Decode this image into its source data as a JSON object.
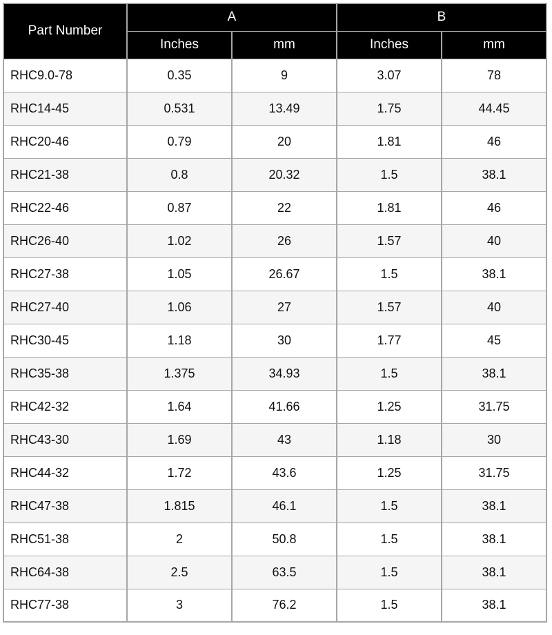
{
  "table": {
    "header": {
      "part_number": "Part Number",
      "group_a": "A",
      "group_b": "B",
      "a_inches": "Inches",
      "a_mm": "mm",
      "b_inches": "Inches",
      "b_mm": "mm"
    },
    "rows": [
      {
        "part": "RHC9.0-78",
        "a_in": "0.35",
        "a_mm": "9",
        "b_in": "3.07",
        "b_mm": "78"
      },
      {
        "part": "RHC14-45",
        "a_in": "0.531",
        "a_mm": "13.49",
        "b_in": "1.75",
        "b_mm": "44.45"
      },
      {
        "part": "RHC20-46",
        "a_in": "0.79",
        "a_mm": "20",
        "b_in": "1.81",
        "b_mm": "46"
      },
      {
        "part": "RHC21-38",
        "a_in": "0.8",
        "a_mm": "20.32",
        "b_in": "1.5",
        "b_mm": "38.1"
      },
      {
        "part": "RHC22-46",
        "a_in": "0.87",
        "a_mm": "22",
        "b_in": "1.81",
        "b_mm": "46"
      },
      {
        "part": "RHC26-40",
        "a_in": "1.02",
        "a_mm": "26",
        "b_in": "1.57",
        "b_mm": "40"
      },
      {
        "part": "RHC27-38",
        "a_in": "1.05",
        "a_mm": "26.67",
        "b_in": "1.5",
        "b_mm": "38.1"
      },
      {
        "part": "RHC27-40",
        "a_in": "1.06",
        "a_mm": "27",
        "b_in": "1.57",
        "b_mm": "40"
      },
      {
        "part": "RHC30-45",
        "a_in": "1.18",
        "a_mm": "30",
        "b_in": "1.77",
        "b_mm": "45"
      },
      {
        "part": "RHC35-38",
        "a_in": "1.375",
        "a_mm": "34.93",
        "b_in": "1.5",
        "b_mm": "38.1"
      },
      {
        "part": "RHC42-32",
        "a_in": "1.64",
        "a_mm": "41.66",
        "b_in": "1.25",
        "b_mm": "31.75"
      },
      {
        "part": "RHC43-30",
        "a_in": "1.69",
        "a_mm": "43",
        "b_in": "1.18",
        "b_mm": "30"
      },
      {
        "part": "RHC44-32",
        "a_in": "1.72",
        "a_mm": "43.6",
        "b_in": "1.25",
        "b_mm": "31.75"
      },
      {
        "part": "RHC47-38",
        "a_in": "1.815",
        "a_mm": "46.1",
        "b_in": "1.5",
        "b_mm": "38.1"
      },
      {
        "part": "RHC51-38",
        "a_in": "2",
        "a_mm": "50.8",
        "b_in": "1.5",
        "b_mm": "38.1"
      },
      {
        "part": "RHC64-38",
        "a_in": "2.5",
        "a_mm": "63.5",
        "b_in": "1.5",
        "b_mm": "38.1"
      },
      {
        "part": "RHC77-38",
        "a_in": "3",
        "a_mm": "76.2",
        "b_in": "1.5",
        "b_mm": "38.1"
      }
    ]
  },
  "colors": {
    "header_bg": "#000000",
    "header_text": "#ffffff",
    "row_bg": "#ffffff",
    "row_alt_bg": "#f5f5f5",
    "border": "#a6a6a6",
    "text": "#111111"
  }
}
